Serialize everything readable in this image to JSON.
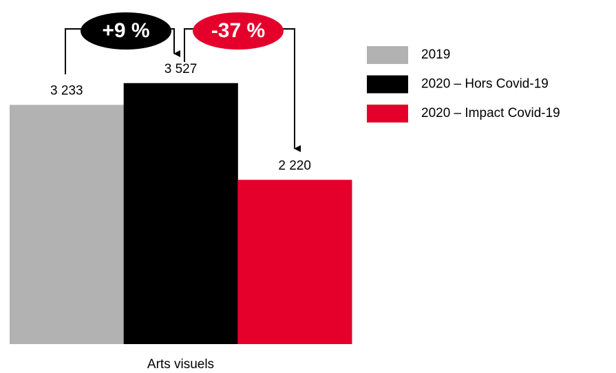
{
  "chart_data": {
    "type": "bar",
    "categories": [
      "Arts visuels"
    ],
    "series": [
      {
        "name": "2019",
        "color": "#b2b2b2",
        "values": [
          3233
        ],
        "value_labels": [
          "3 233"
        ]
      },
      {
        "name": "2020 – Hors Covid-19",
        "color": "#000000",
        "values": [
          3527
        ],
        "value_labels": [
          "3 527"
        ]
      },
      {
        "name": "2020 – Impact Covid-19",
        "color": "#e4002b",
        "values": [
          2220
        ],
        "value_labels": [
          "2 220"
        ]
      }
    ],
    "ylim": [
      0,
      4650
    ],
    "legend": "right",
    "annotations": [
      {
        "text": "+9 %",
        "color": "#000000"
      },
      {
        "text": "-37 %",
        "color": "#e4002b"
      }
    ]
  }
}
